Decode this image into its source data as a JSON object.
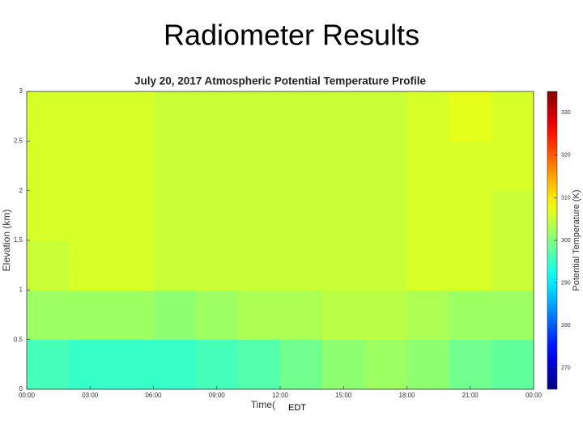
{
  "slide_title": "Radiometer Results",
  "chart_data": {
    "type": "heatmap",
    "title": "July 20, 2017 Atmospheric Potential Temperature Profile",
    "xlabel": "Time(",
    "xlabel_annotation": "EDT",
    "ylabel": "Elevation (km)",
    "colorbar_label": "Potential Temperature (K)",
    "x": [
      1,
      3,
      5,
      7,
      9,
      11,
      13,
      15,
      17,
      19,
      21,
      23
    ],
    "y": [
      0.25,
      0.75,
      1.25,
      1.75,
      2.25,
      2.75
    ],
    "z": [
      [
        296,
        295,
        295,
        295,
        296,
        297,
        299,
        301,
        302,
        301,
        299,
        298
      ],
      [
        302,
        302,
        302,
        301,
        302,
        303,
        303,
        304,
        304,
        303,
        302,
        302
      ],
      [
        305,
        306,
        306,
        305,
        305,
        305,
        305,
        305,
        305,
        306,
        306,
        305
      ],
      [
        306,
        306,
        306,
        305,
        305,
        305,
        305,
        305,
        305,
        306,
        306,
        305
      ],
      [
        306,
        306,
        306,
        305,
        305,
        305,
        305,
        305,
        305,
        306,
        306,
        306
      ],
      [
        306,
        306,
        306,
        305,
        305,
        305,
        305,
        305,
        305,
        306,
        307,
        306
      ]
    ],
    "xlim": [
      0,
      24
    ],
    "xticks": [
      {
        "value": 0,
        "label": "00:00"
      },
      {
        "value": 3,
        "label": "03:00"
      },
      {
        "value": 6,
        "label": "06:00"
      },
      {
        "value": 9,
        "label": "09:00"
      },
      {
        "value": 12,
        "label": "12:00"
      },
      {
        "value": 15,
        "label": "15:00"
      },
      {
        "value": 18,
        "label": "18:00"
      },
      {
        "value": 21,
        "label": "21:00"
      },
      {
        "value": 24,
        "label": "00:00"
      }
    ],
    "ylim": [
      0,
      3
    ],
    "yticks": [
      0,
      0.5,
      1,
      1.5,
      2,
      2.5,
      3
    ],
    "clim": [
      265,
      335
    ],
    "cticks": [
      270,
      280,
      290,
      300,
      310,
      320,
      330
    ],
    "colormap": "jet"
  }
}
